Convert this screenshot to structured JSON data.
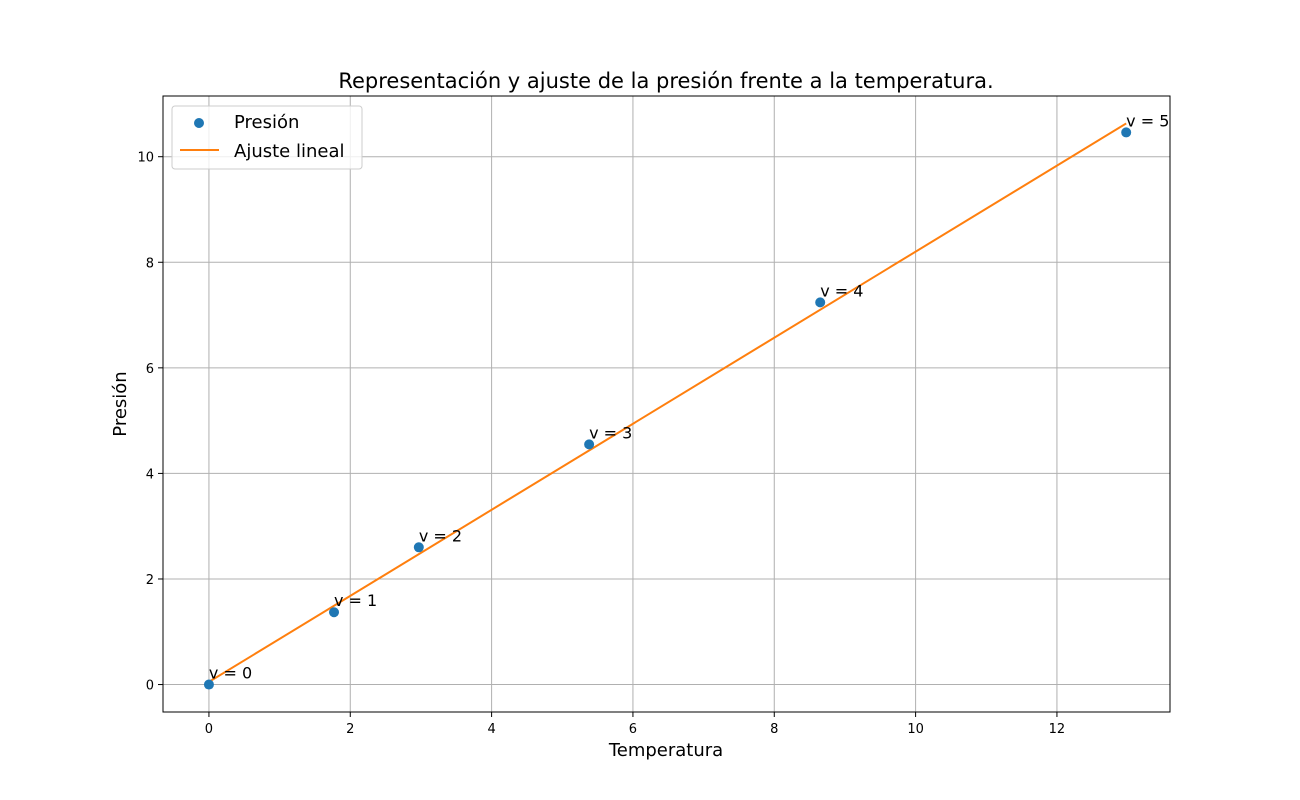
{
  "chart_data": {
    "type": "scatter",
    "title": "Representación y ajuste de la presión frente a la temperatura.",
    "xlabel": "Temperatura",
    "ylabel": "Presión",
    "xlim": [
      -0.65,
      13.6
    ],
    "ylim": [
      -0.52,
      11.15
    ],
    "xticks": [
      0,
      2,
      4,
      6,
      8,
      10,
      12
    ],
    "yticks": [
      0,
      2,
      4,
      6,
      8,
      10
    ],
    "grid": true,
    "legend_position": "upper-left",
    "series": [
      {
        "name": "Presión",
        "kind": "scatter",
        "color": "#1f77b4",
        "x": [
          0.0,
          1.77,
          2.97,
          5.38,
          8.65,
          12.98
        ],
        "y": [
          0.0,
          1.37,
          2.6,
          4.55,
          7.24,
          10.46
        ],
        "labels": [
          "v = 0",
          "v = 1",
          "v = 2",
          "v = 3",
          "v = 4",
          "v = 5"
        ]
      },
      {
        "name": "Ajuste lineal",
        "kind": "line",
        "color": "#ff7f0e",
        "x": [
          0.0,
          12.98
        ],
        "y": [
          0.05,
          10.63
        ]
      }
    ]
  }
}
